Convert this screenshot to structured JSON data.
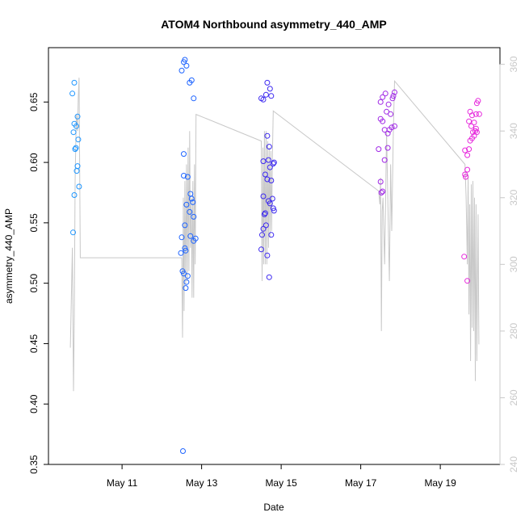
{
  "chart_data": {
    "type": "scatter",
    "title": "ATOM4 Northbound asymmetry_440_AMP",
    "xlabel": "Date",
    "ylabel": "asymmetry_440_AMP",
    "x_ticks": [
      {
        "label": "May 11",
        "value": 11
      },
      {
        "label": "May 13",
        "value": 13
      },
      {
        "label": "May 15",
        "value": 15
      },
      {
        "label": "May 17",
        "value": 17
      },
      {
        "label": "May 19",
        "value": 19
      }
    ],
    "xlim": [
      9.15,
      20.5
    ],
    "ylim": [
      0.35,
      0.695
    ],
    "y_ticks": [
      "0.35",
      "0.40",
      "0.45",
      "0.50",
      "0.55",
      "0.60",
      "0.65"
    ],
    "secondary_ylim": [
      240,
      365
    ],
    "secondary_y_ticks": [
      "240",
      "260",
      "280",
      "300",
      "320",
      "340",
      "360"
    ],
    "colors": {
      "line": "#c8c8c8",
      "axis_right": "#c8c8c8",
      "group1": "#1e96ff",
      "group2": "#1e64ff",
      "group3": "#3c28f0",
      "group4": "#a028e6",
      "group5": "#e628dc"
    },
    "series": [
      {
        "color": "#1e96ff",
        "points": [
          [
            9.75,
            0.657
          ],
          [
            9.8,
            0.666
          ],
          [
            9.78,
            0.625
          ],
          [
            9.8,
            0.632
          ],
          [
            9.85,
            0.63
          ],
          [
            9.88,
            0.638
          ],
          [
            9.9,
            0.619
          ],
          [
            9.82,
            0.611
          ],
          [
            9.84,
            0.612
          ],
          [
            9.88,
            0.597
          ],
          [
            9.86,
            0.593
          ],
          [
            9.8,
            0.573
          ],
          [
            9.92,
            0.58
          ],
          [
            9.77,
            0.542
          ]
        ]
      },
      {
        "color": "#1e64ff",
        "points": [
          [
            12.5,
            0.676
          ],
          [
            12.55,
            0.683
          ],
          [
            12.58,
            0.685
          ],
          [
            12.62,
            0.68
          ],
          [
            12.7,
            0.666
          ],
          [
            12.75,
            0.668
          ],
          [
            12.8,
            0.653
          ],
          [
            12.55,
            0.607
          ],
          [
            12.55,
            0.589
          ],
          [
            12.65,
            0.588
          ],
          [
            12.62,
            0.565
          ],
          [
            12.72,
            0.574
          ],
          [
            12.75,
            0.57
          ],
          [
            12.78,
            0.567
          ],
          [
            12.7,
            0.559
          ],
          [
            12.8,
            0.555
          ],
          [
            12.58,
            0.548
          ],
          [
            12.5,
            0.538
          ],
          [
            12.72,
            0.539
          ],
          [
            12.8,
            0.535
          ],
          [
            12.85,
            0.537
          ],
          [
            12.58,
            0.529
          ],
          [
            12.6,
            0.527
          ],
          [
            12.48,
            0.525
          ],
          [
            12.52,
            0.51
          ],
          [
            12.55,
            0.508
          ],
          [
            12.65,
            0.506
          ],
          [
            12.62,
            0.501
          ],
          [
            12.6,
            0.496
          ],
          [
            12.53,
            0.361
          ]
        ]
      },
      {
        "color": "#3c28f0",
        "points": [
          [
            14.5,
            0.653
          ],
          [
            14.55,
            0.652
          ],
          [
            14.62,
            0.656
          ],
          [
            14.65,
            0.666
          ],
          [
            14.72,
            0.661
          ],
          [
            14.75,
            0.655
          ],
          [
            14.65,
            0.622
          ],
          [
            14.7,
            0.613
          ],
          [
            14.55,
            0.601
          ],
          [
            14.68,
            0.602
          ],
          [
            14.72,
            0.596
          ],
          [
            14.8,
            0.599
          ],
          [
            14.82,
            0.6
          ],
          [
            14.6,
            0.59
          ],
          [
            14.65,
            0.586
          ],
          [
            14.75,
            0.585
          ],
          [
            14.55,
            0.572
          ],
          [
            14.78,
            0.57
          ],
          [
            14.68,
            0.568
          ],
          [
            14.72,
            0.566
          ],
          [
            14.8,
            0.562
          ],
          [
            14.82,
            0.56
          ],
          [
            14.6,
            0.558
          ],
          [
            14.58,
            0.557
          ],
          [
            14.62,
            0.548
          ],
          [
            14.55,
            0.545
          ],
          [
            14.52,
            0.54
          ],
          [
            14.75,
            0.54
          ],
          [
            14.5,
            0.528
          ],
          [
            14.65,
            0.523
          ],
          [
            14.7,
            0.505
          ]
        ]
      },
      {
        "color": "#a028e6",
        "points": [
          [
            17.5,
            0.65
          ],
          [
            17.55,
            0.654
          ],
          [
            17.62,
            0.657
          ],
          [
            17.65,
            0.642
          ],
          [
            17.7,
            0.648
          ],
          [
            17.75,
            0.64
          ],
          [
            17.8,
            0.653
          ],
          [
            17.82,
            0.655
          ],
          [
            17.85,
            0.658
          ],
          [
            17.5,
            0.636
          ],
          [
            17.55,
            0.634
          ],
          [
            17.6,
            0.627
          ],
          [
            17.72,
            0.627
          ],
          [
            17.78,
            0.629
          ],
          [
            17.85,
            0.63
          ],
          [
            17.68,
            0.624
          ],
          [
            17.45,
            0.611
          ],
          [
            17.68,
            0.612
          ],
          [
            17.6,
            0.602
          ],
          [
            17.5,
            0.584
          ],
          [
            17.55,
            0.576
          ],
          [
            17.52,
            0.575
          ]
        ]
      },
      {
        "color": "#e628dc",
        "points": [
          [
            19.75,
            0.642
          ],
          [
            19.8,
            0.639
          ],
          [
            19.85,
            0.633
          ],
          [
            19.9,
            0.64
          ],
          [
            19.72,
            0.634
          ],
          [
            19.78,
            0.63
          ],
          [
            19.88,
            0.626
          ],
          [
            19.92,
            0.625
          ],
          [
            19.82,
            0.625
          ],
          [
            19.9,
            0.628
          ],
          [
            19.85,
            0.622
          ],
          [
            19.8,
            0.62
          ],
          [
            19.75,
            0.618
          ],
          [
            19.72,
            0.611
          ],
          [
            19.68,
            0.606
          ],
          [
            19.62,
            0.61
          ],
          [
            19.68,
            0.594
          ],
          [
            19.62,
            0.59
          ],
          [
            19.64,
            0.588
          ],
          [
            19.95,
            0.651
          ],
          [
            19.92,
            0.649
          ],
          [
            19.98,
            0.64
          ],
          [
            19.6,
            0.522
          ],
          [
            19.68,
            0.502
          ]
        ]
      }
    ],
    "line_series": [
      [
        9.7,
        275
      ],
      [
        9.75,
        305
      ],
      [
        9.78,
        262
      ],
      [
        9.8,
        285
      ],
      [
        9.82,
        325
      ],
      [
        9.85,
        345
      ],
      [
        9.88,
        340
      ],
      [
        9.9,
        350
      ],
      [
        9.92,
        356
      ],
      [
        9.95,
        302
      ],
      [
        12.5,
        302
      ],
      [
        12.52,
        278
      ],
      [
        12.54,
        320
      ],
      [
        12.56,
        286
      ],
      [
        12.58,
        325
      ],
      [
        12.6,
        294
      ],
      [
        12.62,
        330
      ],
      [
        12.64,
        295
      ],
      [
        12.66,
        335
      ],
      [
        12.68,
        298
      ],
      [
        12.7,
        340
      ],
      [
        12.72,
        305
      ],
      [
        12.74,
        320
      ],
      [
        12.76,
        290
      ],
      [
        12.78,
        325
      ],
      [
        12.8,
        290
      ],
      [
        12.82,
        330
      ],
      [
        12.84,
        300
      ],
      [
        12.86,
        345
      ],
      [
        14.5,
        337
      ],
      [
        14.52,
        295
      ],
      [
        14.54,
        335
      ],
      [
        14.56,
        300
      ],
      [
        14.58,
        340
      ],
      [
        14.6,
        300
      ],
      [
        14.62,
        340
      ],
      [
        14.64,
        300
      ],
      [
        14.66,
        337
      ],
      [
        14.68,
        305
      ],
      [
        14.7,
        335
      ],
      [
        14.72,
        308
      ],
      [
        14.74,
        334
      ],
      [
        14.76,
        310
      ],
      [
        14.78,
        333
      ],
      [
        14.8,
        346
      ],
      [
        17.45,
        322
      ],
      [
        17.48,
        318
      ],
      [
        17.5,
        326
      ],
      [
        17.52,
        280
      ],
      [
        17.54,
        316
      ],
      [
        17.56,
        320
      ],
      [
        17.58,
        310
      ],
      [
        17.6,
        300
      ],
      [
        17.62,
        315
      ],
      [
        17.65,
        340
      ],
      [
        17.68,
        320
      ],
      [
        17.72,
        295
      ],
      [
        17.75,
        330
      ],
      [
        17.78,
        310
      ],
      [
        17.82,
        340
      ],
      [
        17.85,
        355
      ],
      [
        19.62,
        330
      ],
      [
        19.65,
        320
      ],
      [
        19.68,
        300
      ],
      [
        19.7,
        327
      ],
      [
        19.72,
        285
      ],
      [
        19.74,
        318
      ],
      [
        19.76,
        271
      ],
      [
        19.78,
        324
      ],
      [
        19.8,
        281
      ],
      [
        19.82,
        325
      ],
      [
        19.84,
        280
      ],
      [
        19.86,
        320
      ],
      [
        19.88,
        265
      ],
      [
        19.9,
        318
      ],
      [
        19.92,
        271
      ],
      [
        19.95,
        315
      ],
      [
        19.97,
        276
      ]
    ]
  }
}
